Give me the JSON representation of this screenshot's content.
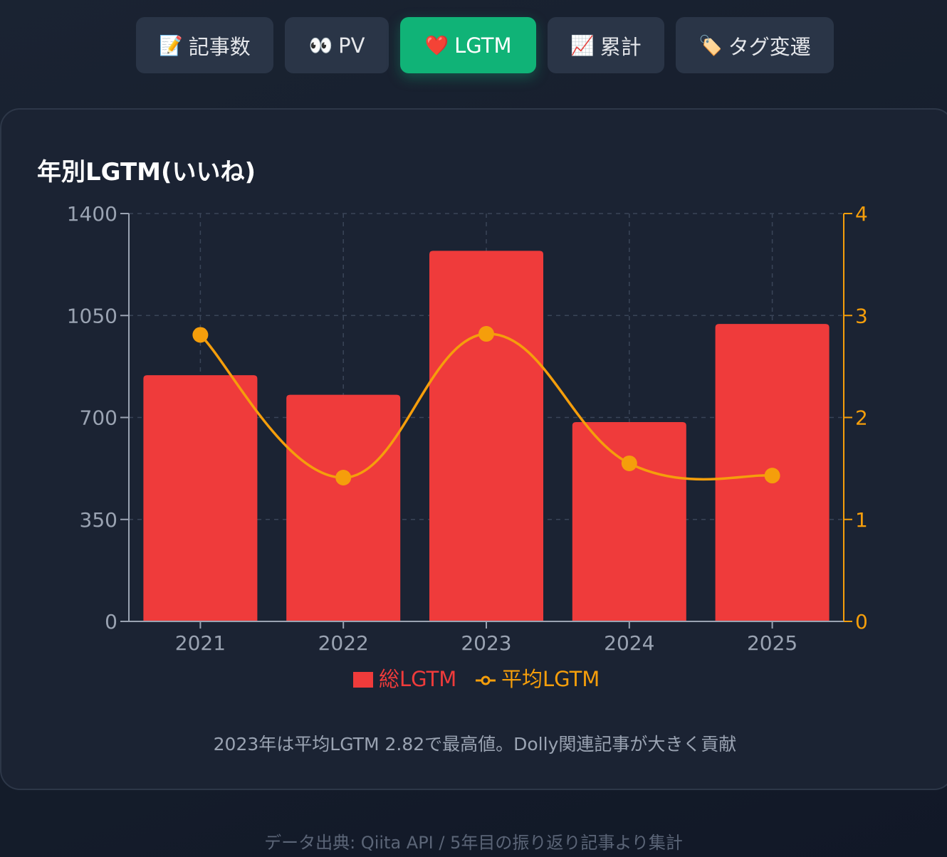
{
  "tabs": [
    {
      "icon": "📝",
      "icon_name": "memo-icon",
      "label": "記事数",
      "active": false
    },
    {
      "icon": "👀",
      "icon_name": "eyes-icon",
      "label": "PV",
      "active": false
    },
    {
      "icon": "❤️",
      "icon_name": "heart-icon",
      "label": "LGTM",
      "active": true
    },
    {
      "icon": "📈",
      "icon_name": "chart-increasing-icon",
      "label": "累計",
      "active": false
    },
    {
      "icon": "🏷️",
      "icon_name": "label-tag-icon",
      "label": "タグ変遷",
      "active": false
    }
  ],
  "chart_data": {
    "type": "bar",
    "title": "年別LGTM(いいね)",
    "categories": [
      "2021",
      "2022",
      "2023",
      "2024",
      "2025"
    ],
    "series": [
      {
        "name": "総LGTM",
        "type": "bar",
        "axis": "left",
        "color": "#ef3b3b",
        "values": [
          845,
          778,
          1272,
          684,
          1021
        ]
      },
      {
        "name": "平均LGTM",
        "type": "line",
        "axis": "right",
        "color": "#f59e0b",
        "values": [
          2.81,
          1.41,
          2.82,
          1.55,
          1.43
        ]
      }
    ],
    "y_left": {
      "min": 0,
      "max": 1400,
      "ticks": [
        "0",
        "350",
        "700",
        "1050",
        "1400"
      ]
    },
    "y_right": {
      "min": 0,
      "max": 4,
      "ticks": [
        "0",
        "1",
        "2",
        "3",
        "4"
      ]
    },
    "grid": true,
    "legend_position": "bottom-center"
  },
  "caption": "2023年は平均LGTM 2.82で最高値。Dolly関連記事が大きく貢献",
  "footer": "データ出典: Qiita API / 5年目の振り返り記事より集計",
  "colors": {
    "active_tab": "#10b377",
    "tab_bg": "#2a3547",
    "bar": "#ef3b3b",
    "line": "#f59e0b",
    "axis_left": "#9aa3b2",
    "grid": "#3a4558"
  }
}
